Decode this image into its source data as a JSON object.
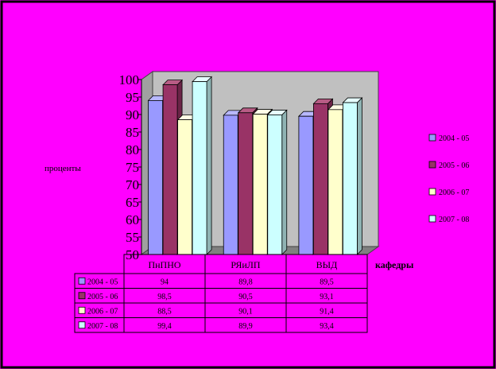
{
  "chart_data": {
    "type": "bar",
    "three_d": true,
    "categories": [
      "ПнПНО",
      "РЯиЛП",
      "ВЫД"
    ],
    "series": [
      {
        "name": "2004 - 05",
        "values": [
          94,
          89.8,
          89.5
        ]
      },
      {
        "name": "2005 - 06",
        "values": [
          98.5,
          90.5,
          93.1
        ]
      },
      {
        "name": "2006 - 07",
        "values": [
          88.5,
          90.1,
          91.4
        ]
      },
      {
        "name": "2007 - 08",
        "values": [
          99.4,
          89.9,
          93.4
        ]
      }
    ],
    "ylabel": "проценты",
    "xlabel": "кафедры",
    "ylim": [
      50,
      100
    ],
    "yticks": [
      "50",
      "55",
      "60",
      "65",
      "70",
      "75",
      "80",
      "85",
      "90",
      "95",
      "100"
    ],
    "grid": false,
    "legend": "right",
    "data_table": {
      "rows": [
        [
          "94",
          "89,8",
          "89,5"
        ],
        [
          "98,5",
          "90,5",
          "93,1"
        ],
        [
          "88,5",
          "90,1",
          "91,4"
        ],
        [
          "99,4",
          "89,9",
          "93,4"
        ]
      ]
    },
    "colors": {
      "background": "#ff00ff",
      "frame": "#000000",
      "walls": "#c0c0c0",
      "floor": "#808080",
      "series": [
        "#9999ff",
        "#993366",
        "#ffffcc",
        "#ccffff"
      ],
      "series_shade": [
        "#6b6bb3",
        "#6b2447",
        "#b3b38f",
        "#8fb3b3"
      ],
      "series_top": [
        "#b8b8ff",
        "#b85c85",
        "#ffffe6",
        "#e6ffff"
      ]
    }
  }
}
